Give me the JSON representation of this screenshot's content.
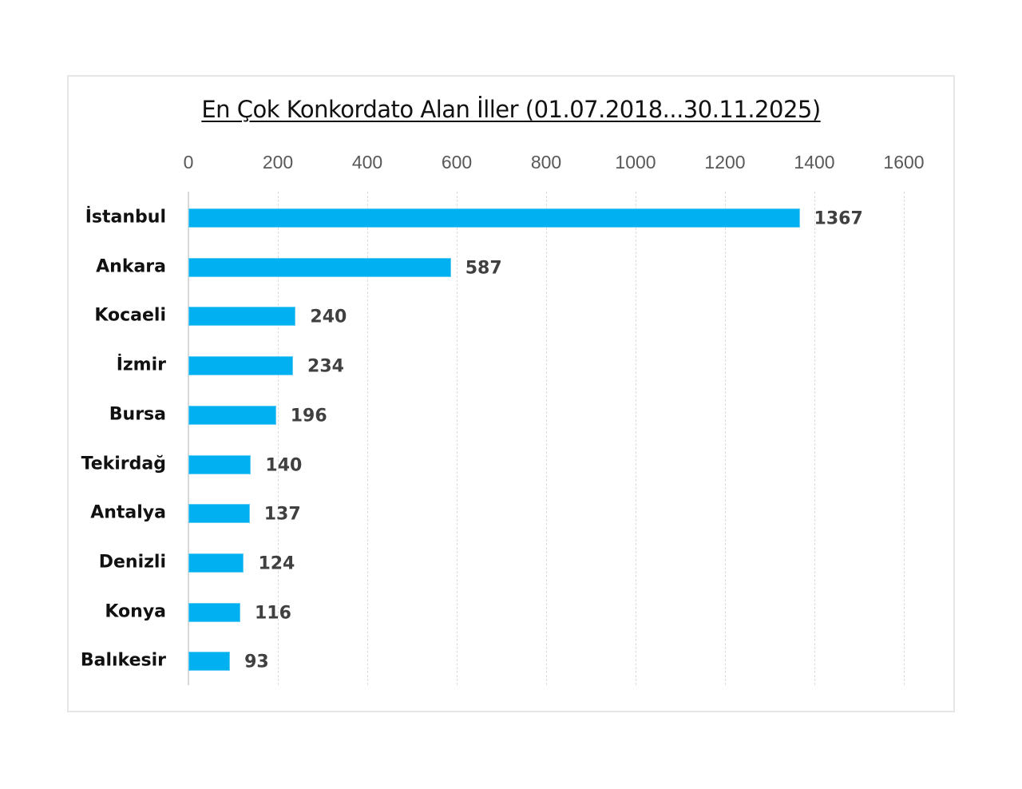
{
  "chart_data": {
    "type": "bar",
    "orientation": "horizontal",
    "title": "En Çok Konkordato Alan İller (01.07.2018...30.11.2025)",
    "categories": [
      "İstanbul",
      "Ankara",
      "Kocaeli",
      "İzmir",
      "Bursa",
      "Tekirdağ",
      "Antalya",
      "Denizli",
      "Konya",
      "Balıkesir"
    ],
    "values": [
      1367,
      587,
      240,
      234,
      196,
      140,
      137,
      124,
      116,
      93
    ],
    "xlabel": "",
    "ylabel": "",
    "xlim": [
      0,
      1600
    ],
    "x_ticks": [
      "0",
      "200",
      "400",
      "600",
      "800",
      "1000",
      "1200",
      "1400",
      "1600"
    ],
    "x_axis_position": "top",
    "grid": true,
    "legend": "none",
    "bar_color": "#00b0f0",
    "data_labels": true
  }
}
